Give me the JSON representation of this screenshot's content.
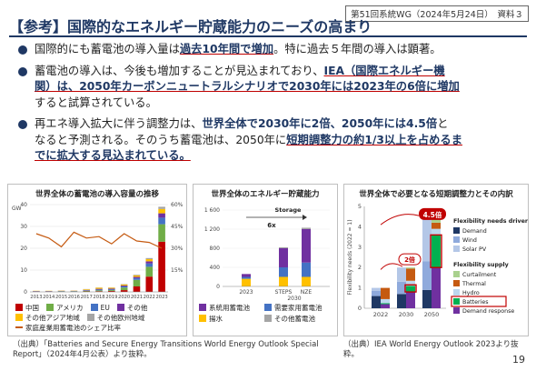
{
  "header": {
    "meeting": "第51回系統WG（2024年5月24日）　資料３",
    "title": "【参考】国際的なエネルギー貯蔵能力のニーズの高まり"
  },
  "bullets": [
    {
      "lines": [
        [
          {
            "t": "国際的にも蓄電池の導入量は"
          },
          {
            "t": "過去10年間で増加",
            "s": "hl"
          },
          {
            "t": "。特に過去５年間の導入は顕著。"
          }
        ]
      ]
    },
    {
      "lines": [
        [
          {
            "t": "蓄電池の導入は、今後も増加することが見込まれており、"
          },
          {
            "t": "IEA（国際エネルギー機",
            "s": "hl"
          }
        ],
        [
          {
            "t": "関）は、2050年カーボンニュートラルシナリオで2030年には2023年の6倍に増加",
            "s": "hl"
          }
        ],
        [
          {
            "t": "すると試算されている。"
          }
        ]
      ]
    },
    {
      "lines": [
        [
          {
            "t": "再エネ導入拡大に伴う調整力は、"
          },
          {
            "t": "世界全体で2030年に2倍、2050年には4.5倍",
            "s": "strong"
          },
          {
            "t": "と"
          }
        ],
        [
          {
            "t": "なると予測される。そのうち蓄電池は、2050年に"
          },
          {
            "t": "短期調整力の約1/3以上を占めるま",
            "s": "hl"
          }
        ],
        [
          {
            "t": "でに拡大する見込まれている。",
            "s": "hl"
          }
        ]
      ]
    }
  ],
  "chart_data": [
    {
      "type": "bar",
      "title": "世界全体の蓄電池の導入容量の推移",
      "ylabel": "GW",
      "categories": [
        "2013",
        "2014",
        "2015",
        "2016",
        "2017",
        "2018",
        "2019",
        "2020",
        "2021",
        "2022",
        "2023"
      ],
      "ylim": [
        0,
        40
      ],
      "y2lim": [
        0,
        60
      ],
      "yticks": [
        "0",
        "10",
        "20",
        "30",
        "40"
      ],
      "y2ticks": [
        "15%",
        "30%",
        "45%",
        "60%"
      ],
      "series": [
        {
          "name": "中国",
          "color": "#c00000",
          "values": [
            0.1,
            0.1,
            0.1,
            0.1,
            0.2,
            0.3,
            0.4,
            0.8,
            2.5,
            7,
            23
          ]
        },
        {
          "name": "アメリカ",
          "color": "#70ad47",
          "values": [
            0.1,
            0.1,
            0.2,
            0.2,
            0.3,
            0.4,
            0.4,
            1.2,
            3,
            4.5,
            8
          ]
        },
        {
          "name": "EU",
          "color": "#4472c4",
          "values": [
            0.1,
            0.1,
            0.1,
            0.1,
            0.2,
            0.4,
            0.4,
            0.5,
            0.8,
            1.5,
            3
          ]
        },
        {
          "name": "その他",
          "color": "#7030a0",
          "values": [
            0.1,
            0.1,
            0.1,
            0.1,
            0.2,
            0.3,
            0.3,
            0.4,
            0.6,
            1,
            2
          ]
        },
        {
          "name": "その他アジア地域",
          "color": "#ffc000",
          "values": [
            0.1,
            0.1,
            0.1,
            0.1,
            0.3,
            0.5,
            0.4,
            0.5,
            0.7,
            1,
            2
          ]
        },
        {
          "name": "その他欧州地域",
          "color": "#a5a5a5",
          "values": [
            0,
            0,
            0,
            0,
            0.1,
            0.1,
            0.1,
            0.2,
            0.3,
            0.5,
            1
          ]
        }
      ],
      "line": {
        "name": "家庭産業用蓄電池のシェア比率",
        "color": "#c55a11",
        "values": [
          40,
          37,
          31,
          41,
          37,
          38,
          33,
          40,
          35,
          34,
          30
        ]
      }
    },
    {
      "type": "bar",
      "title": "世界全体のエネルギー貯蔵能力",
      "categories": [
        "2023",
        "STEPS",
        "NZE"
      ],
      "subcategory": "2030",
      "annotation_storage": "Storage",
      "annotation_multiplier": "6x",
      "ylim": [
        0,
        1600
      ],
      "yticks": [
        "0",
        "400",
        "800",
        "1 200",
        "1 600"
      ],
      "series": [
        {
          "name": "系統用蓄電池",
          "color": "#7030a0",
          "values": [
            60,
            400,
            700
          ]
        },
        {
          "name": "需要家用蓄電池",
          "color": "#4472c4",
          "values": [
            40,
            200,
            300
          ]
        },
        {
          "name": "揚水",
          "color": "#ffc000",
          "values": [
            160,
            200,
            200
          ]
        },
        {
          "name": "その他蓄電池",
          "color": "#a5a5a5",
          "values": [
            0,
            20,
            30
          ]
        }
      ]
    },
    {
      "type": "bar",
      "title": "世界全体で必要となる短期調整力とその内訳",
      "ylabel": "Flexibility needs (2022 = 1)",
      "categories": [
        "2022",
        "2030",
        "2050"
      ],
      "ylim": [
        0,
        5
      ],
      "yticks": [
        "0",
        "1",
        "2",
        "3",
        "4",
        "5"
      ],
      "callouts": [
        "2倍",
        "4.5倍"
      ],
      "driver_title": "Flexibility needs driver",
      "driver_series": [
        {
          "name": "Demand",
          "color": "#1f3864",
          "values": [
            0.6,
            0.7,
            0.9
          ]
        },
        {
          "name": "Wind",
          "color": "#8faadc",
          "values": [
            0.25,
            0.6,
            1.4
          ]
        },
        {
          "name": "Solar PV",
          "color": "#b4c7e7",
          "values": [
            0.15,
            0.7,
            2.2
          ]
        }
      ],
      "supply_title": "Flexibility supply",
      "supply_series": [
        {
          "name": "Curtailment",
          "color": "#a9d18e",
          "values": [
            0,
            0.05,
            0.3
          ]
        },
        {
          "name": "Thermal",
          "color": "#c55a11",
          "values": [
            0.55,
            0.6,
            0.3
          ]
        },
        {
          "name": "Hydro",
          "color": "#bdd7ee",
          "values": [
            0.2,
            0.25,
            0.3
          ]
        },
        {
          "name": "Batteries",
          "color": "#00b050",
          "values": [
            0.05,
            0.3,
            1.6
          ]
        },
        {
          "name": "Demand response",
          "color": "#7030a0",
          "values": [
            0.2,
            0.8,
            2.0
          ]
        }
      ]
    }
  ],
  "sources": {
    "left": "（出典）「Batteries and Secure Energy Transitions World Energy Outlook Special Report」（2024年4月公表）より抜粋。",
    "right": "（出典）IEA World Energy Outlook 2023より抜粋。"
  },
  "page": "19"
}
